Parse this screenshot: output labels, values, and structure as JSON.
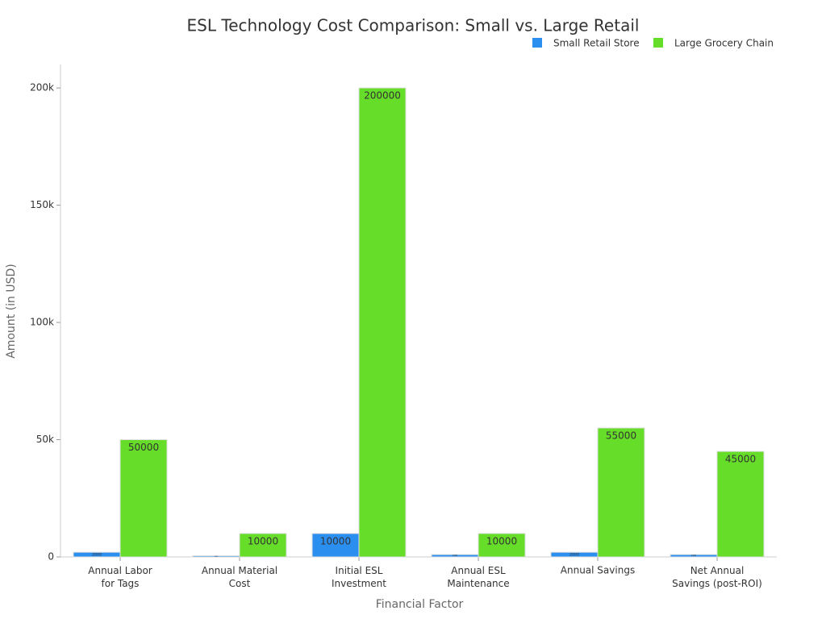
{
  "chart_data": {
    "type": "bar",
    "title": "ESL Technology Cost Comparison: Small vs. Large Retail",
    "x_label": "Financial Factor",
    "y_label": "Amount (in USD)",
    "categories": [
      "Annual Labor\nfor Tags",
      "Annual Material\nCost",
      "Initial ESL\nInvestment",
      "Annual ESL\nMaintenance",
      "Annual Savings",
      "Net Annual\nSavings (post-ROI)"
    ],
    "series": [
      {
        "name": "Small Retail Store",
        "color": "#2b8ff0",
        "values": [
          2000,
          500,
          10000,
          1000,
          2000,
          1000
        ]
      },
      {
        "name": "Large Grocery Chain",
        "color": "#66dd28",
        "values": [
          50000,
          10000,
          200000,
          10000,
          55000,
          45000
        ]
      }
    ],
    "ylim": [
      0,
      210000
    ],
    "yticks": [
      0,
      {
        "value": 50000,
        "label": "50k"
      },
      {
        "value": 100000,
        "label": "100k"
      },
      {
        "value": 150000,
        "label": "150k"
      },
      {
        "value": 200000,
        "label": "200k"
      }
    ],
    "legend": "top-right"
  }
}
